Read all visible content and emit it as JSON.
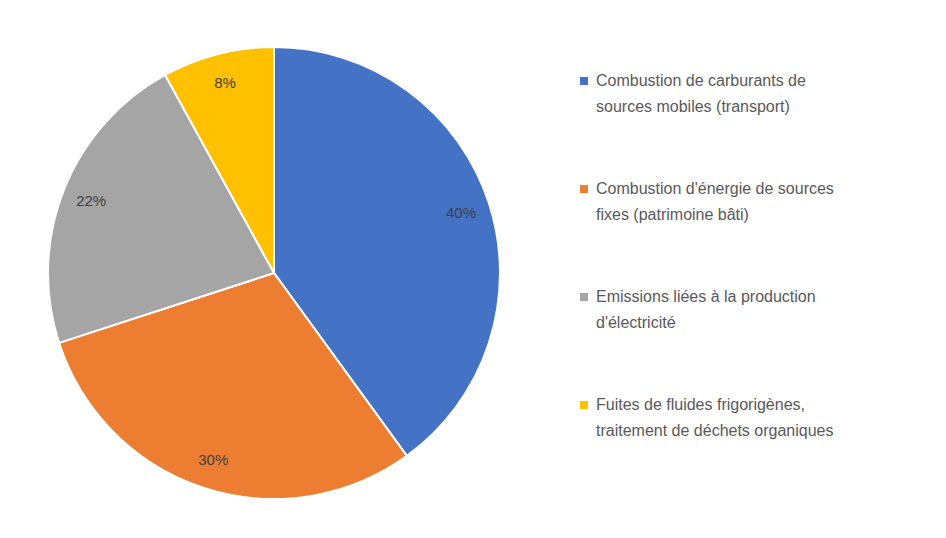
{
  "chart_data": {
    "type": "pie",
    "categories": [
      "Combustion de carburants de sources mobiles (transport)",
      "Combustion d'énergie de sources fixes (patrimoine bâti)",
      "Emissions liées à la production d'électricité",
      "Fuites de fluides frigorigènes, traitement de déchets organiques"
    ],
    "values": [
      40,
      30,
      22,
      8
    ],
    "value_labels": [
      "40%",
      "30%",
      "22%",
      "8%"
    ],
    "colors": [
      "#4472c4",
      "#ed7d31",
      "#a5a5a5",
      "#ffc000"
    ],
    "data_labels": true,
    "legend": "right"
  }
}
